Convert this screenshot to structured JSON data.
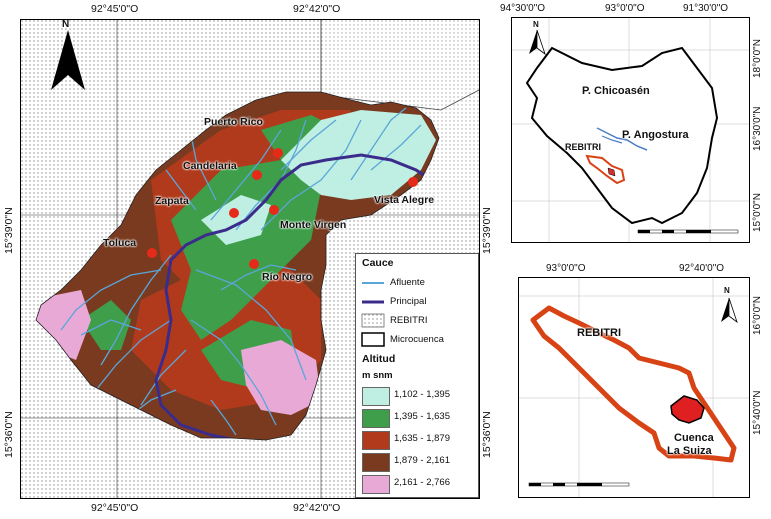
{
  "main_map": {
    "coords_top": [
      "92°45'0\"O",
      "92°42'0\"O"
    ],
    "coords_bottom": [
      "92°45'0\"O",
      "92°42'0\"O"
    ],
    "coords_left": [
      "15°39'0\"N",
      "15°36'0\"N"
    ],
    "coords_right": [
      "15°39'0\"N",
      "15°36'0\"N"
    ],
    "north_label": "N",
    "places": [
      {
        "name": "Puerto Rico"
      },
      {
        "name": "Candelaria"
      },
      {
        "name": "Zapata"
      },
      {
        "name": "Monte Virgen"
      },
      {
        "name": "Vista Alegre"
      },
      {
        "name": "Toluca"
      },
      {
        "name": "Río Negro"
      }
    ]
  },
  "legend": {
    "cauce_title": "Cauce",
    "afluente": "Afluente",
    "principal": "Principal",
    "rebitri": "REBITRI",
    "microcuenca": "Microcuenca",
    "altitud_title": "Altitud",
    "unit": "m snm",
    "classes": [
      {
        "range": "1,102 - 1,395",
        "color": "#bfeee3"
      },
      {
        "range": "1,395 - 1,635",
        "color": "#3e9e4a"
      },
      {
        "range": "1,635 - 1,879",
        "color": "#b23a1c"
      },
      {
        "range": "1,879 - 2,161",
        "color": "#7a3a20"
      },
      {
        "range": "2,161 - 2,766",
        "color": "#e9a9d6"
      }
    ],
    "colors": {
      "afluente": "#5aa6d8",
      "principal": "#3b2c8c",
      "point": "#e62a1a"
    }
  },
  "inset_top": {
    "coords_top": [
      "94°30'0\"O",
      "93°0'0\"O",
      "91°30'0\"O"
    ],
    "coords_right": [
      "18°0'0\"N",
      "16°30'0\"N",
      "15°0'0\"N"
    ],
    "labels": {
      "chicoasen": "P. Chicoasén",
      "angostura": "P. Angostura",
      "rebitri": "REBITRI"
    },
    "north_label": "N"
  },
  "inset_bottom": {
    "coords_top": [
      "93°0'0\"O",
      "92°40'0\"O"
    ],
    "coords_right": [
      "16°0'0\"N",
      "15°40'0\"N"
    ],
    "labels": {
      "rebitri": "REBITRI",
      "cuenca": "Cuenca",
      "cuenca2": "La Suiza"
    },
    "north_label": "N"
  }
}
